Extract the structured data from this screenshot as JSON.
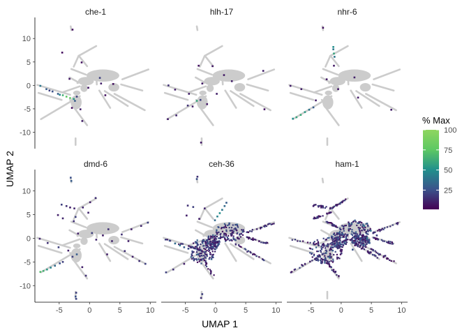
{
  "chart_data": {
    "type": "scatter",
    "facets": [
      "che-1",
      "hlh-17",
      "nhr-6",
      "dmd-6",
      "ceh-36",
      "ham-1"
    ],
    "xlabel": "UMAP 1",
    "ylabel": "UMAP 2",
    "xlim": [
      -9,
      11
    ],
    "ylim": [
      -13.5,
      14.5
    ],
    "xticks": [
      -5,
      0,
      5,
      10
    ],
    "yticks": [
      -10,
      -5,
      0,
      5,
      10
    ],
    "xtick_labels": [
      "-5",
      "0",
      "5",
      "10"
    ],
    "ytick_labels": [
      "-10",
      "-5",
      "0",
      "5",
      "10"
    ],
    "background_color": "#cccccc",
    "legend": {
      "title": "% Max",
      "position": "right",
      "breaks": [
        25,
        50,
        75,
        100
      ],
      "break_labels": [
        "25",
        "50",
        "75",
        "100"
      ],
      "range": [
        1,
        100
      ],
      "colors": [
        "#440154",
        "#3b528b",
        "#21908c",
        "#5dc863",
        "#8fd65f"
      ]
    },
    "background_segments": [
      [
        [
          -8,
          -7.2
        ],
        [
          -1.6,
          -2.3
        ]
      ],
      [
        [
          -8.6,
          0.1
        ],
        [
          -3.2,
          -2
        ]
      ],
      [
        [
          -8.4,
          -1.6
        ],
        [
          -4.6,
          -3.1
        ]
      ],
      [
        [
          -3.2,
          -3.1
        ],
        [
          -2.4,
          -4.4
        ]
      ],
      [
        [
          -2.8,
          -4.3
        ],
        [
          -0.4,
          -8.5
        ]
      ],
      [
        [
          -4.5,
          -1.5
        ],
        [
          -1.6,
          -0.2
        ]
      ],
      [
        [
          -3.3,
          1.7
        ],
        [
          -1.9,
          0.7
        ]
      ],
      [
        [
          -2,
          0.5
        ],
        [
          0.9,
          1.8
        ]
      ],
      [
        [
          -3,
          3.5
        ],
        [
          -0.6,
          2.3
        ]
      ],
      [
        [
          -1.7,
          6.2
        ],
        [
          -0.4,
          4.1
        ]
      ],
      [
        [
          -2.6,
          4
        ],
        [
          -1.8,
          6.3
        ]
      ],
      [
        [
          -1.8,
          6.3
        ],
        [
          1.1,
          8.4
        ]
      ],
      [
        [
          -3.1,
          12.6
        ],
        [
          -3,
          11.8
        ]
      ],
      [
        [
          -2.3,
          -11.3
        ],
        [
          -2.3,
          -12.7
        ]
      ],
      [
        [
          5.4,
          1.3
        ],
        [
          9.7,
          3.4
        ]
      ],
      [
        [
          5.2,
          0.2
        ],
        [
          8.7,
          -1.1
        ]
      ],
      [
        [
          4.1,
          -1.8
        ],
        [
          9.1,
          -5.3
        ]
      ],
      [
        [
          2.5,
          -1.2
        ],
        [
          6.3,
          -4.4
        ]
      ],
      [
        [
          1.6,
          -1.1
        ],
        [
          3.4,
          -4.8
        ]
      ],
      [
        [
          1.1,
          2.1
        ],
        [
          1.2,
          0.2
        ]
      ]
    ],
    "background_blobs": [
      [
        2.2,
        2.1,
        2.7,
        1.3
      ],
      [
        -0.6,
        0.9,
        1.3,
        0.9
      ],
      [
        -2.1,
        -1.6,
        0.6,
        0.5
      ],
      [
        -2.2,
        -3.6,
        0.9,
        1.5
      ],
      [
        -0.9,
        -0.6,
        0.6,
        0.8
      ],
      [
        4,
        -0.4,
        0.9,
        0.9
      ]
    ],
    "expression_points": [
      [
        [
          -8.1,
          -0.1,
          40
        ],
        [
          -7.1,
          -0.8,
          30
        ],
        [
          -6.1,
          -1.3,
          25
        ],
        [
          -5.2,
          -1.8,
          30
        ],
        [
          -4.4,
          -2.1,
          65
        ],
        [
          -3.8,
          -2.4,
          75
        ],
        [
          -3.2,
          -2.7,
          78
        ],
        [
          -2.6,
          -2.9,
          55
        ],
        [
          -2.4,
          -3.3,
          30
        ],
        [
          -2.1,
          -2.4,
          20
        ],
        [
          -6.6,
          -1.1,
          20
        ],
        [
          -4.9,
          -2,
          45
        ],
        [
          -1.2,
          -7.6,
          10
        ],
        [
          -4.5,
          7,
          5
        ],
        [
          -2.8,
          11.9,
          5
        ],
        [
          -1.3,
          4.9,
          6
        ],
        [
          -3.3,
          1.4,
          8
        ],
        [
          1.7,
          1.6,
          20
        ],
        [
          1.9,
          0.4,
          10
        ],
        [
          -0.2,
          -0.5,
          8
        ],
        [
          -1.5,
          -5.1,
          10
        ],
        [
          2.6,
          -2.1,
          6
        ],
        [
          -2.9,
          -4.8,
          5
        ],
        [
          3.9,
          0.3,
          6
        ]
      ],
      [
        [
          -7.9,
          -7.2,
          10
        ],
        [
          -6.5,
          -6.4,
          12
        ],
        [
          -4.6,
          -4.3,
          15
        ],
        [
          -3.8,
          -4.5,
          10
        ],
        [
          -3.1,
          -3.3,
          60
        ],
        [
          -2.5,
          -3.1,
          20
        ],
        [
          -4.4,
          -1.8,
          10
        ],
        [
          -7.8,
          0,
          15
        ],
        [
          -6.7,
          -0.9,
          10
        ],
        [
          -2.2,
          0.4,
          8
        ],
        [
          -2.8,
          4.2,
          6
        ],
        [
          -0.5,
          4.1,
          8
        ],
        [
          -1.4,
          -4,
          8
        ],
        [
          0.2,
          -1.8,
          10
        ],
        [
          1.4,
          2.2,
          8
        ],
        [
          2.7,
          0.9,
          10
        ],
        [
          7.9,
          3.1,
          10
        ],
        [
          8.1,
          -5.1,
          6
        ],
        [
          -2.4,
          -12.2,
          8
        ]
      ],
      [
        [
          -1.3,
          7.7,
          40
        ],
        [
          -1.3,
          8.2,
          50
        ],
        [
          -1.2,
          6.8,
          60
        ],
        [
          -1.1,
          6.1,
          40
        ],
        [
          -8,
          -7.1,
          50
        ],
        [
          -7.4,
          -6.8,
          60
        ],
        [
          -6.7,
          -6.3,
          62
        ],
        [
          -6,
          -5.7,
          55
        ],
        [
          -5.3,
          -5.2,
          40
        ],
        [
          -4.6,
          -4.7,
          30
        ],
        [
          -8.4,
          -0.1,
          10
        ],
        [
          -6.6,
          -0.8,
          10
        ],
        [
          -2.4,
          1.3,
          8
        ],
        [
          2.2,
          1.7,
          10
        ],
        [
          -0.5,
          -0.8,
          8
        ],
        [
          -3,
          12.3,
          6
        ],
        [
          2.8,
          -2.6,
          8
        ],
        [
          8.3,
          -5.2,
          10
        ],
        [
          -4.2,
          -3.2,
          8
        ],
        [
          -1.2,
          4.2,
          8
        ]
      ],
      [
        [
          -3.1,
          12.8,
          25
        ],
        [
          -3,
          12.1,
          30
        ],
        [
          -2.2,
          -11.5,
          20
        ],
        [
          -2.3,
          -12.3,
          25
        ],
        [
          -2.2,
          -12.8,
          22
        ],
        [
          -8.1,
          -7.1,
          70
        ],
        [
          -7.6,
          -6.9,
          65
        ],
        [
          -7,
          -6.6,
          55
        ],
        [
          -6.4,
          -6.2,
          45
        ],
        [
          -5.7,
          -5.8,
          35
        ],
        [
          -4.9,
          -5.3,
          25
        ],
        [
          -4.4,
          -5,
          20
        ],
        [
          -4.6,
          7.1,
          20
        ],
        [
          -3.8,
          6.8,
          15
        ],
        [
          -3.2,
          6.5,
          10
        ],
        [
          -2.5,
          6.3,
          12
        ],
        [
          -2.6,
          3.6,
          15
        ],
        [
          -2.3,
          4.5,
          20
        ],
        [
          -1.1,
          6.5,
          12
        ],
        [
          0.1,
          7.6,
          10
        ],
        [
          1,
          8.5,
          15
        ],
        [
          -4.4,
          4.2,
          12
        ],
        [
          -5.2,
          4.9,
          10
        ],
        [
          -1.9,
          1,
          10
        ],
        [
          -8.2,
          -0.1,
          12
        ],
        [
          -6.9,
          -1,
          15
        ],
        [
          -5.1,
          -1.9,
          20
        ],
        [
          -3.5,
          -2.6,
          10
        ],
        [
          -1.2,
          -6.1,
          10
        ],
        [
          -0.6,
          -7.9,
          15
        ],
        [
          -2.8,
          -3.9,
          20
        ],
        [
          -2.1,
          -3.4,
          30
        ],
        [
          0.4,
          1.1,
          20
        ],
        [
          1.1,
          -0.3,
          12
        ],
        [
          2.2,
          0.6,
          10
        ],
        [
          3.1,
          1.9,
          15
        ],
        [
          3.7,
          -0.6,
          12
        ],
        [
          5.3,
          0.8,
          15
        ],
        [
          6.9,
          1.9,
          10
        ],
        [
          8.5,
          2.6,
          12
        ],
        [
          9.6,
          3.3,
          20
        ],
        [
          5.8,
          -2.7,
          15
        ],
        [
          7.1,
          -3.9,
          10
        ],
        [
          8.2,
          -4.8,
          15
        ],
        [
          9.2,
          -5.4,
          20
        ],
        [
          6.4,
          -0.6,
          10
        ],
        [
          2.9,
          -3.4,
          10
        ],
        [
          -0.2,
          5.4,
          12
        ]
      ],
      [
        [
          -3.1,
          12.5,
          25
        ],
        [
          -3,
          13,
          15
        ],
        [
          -2.2,
          -11.8,
          20
        ],
        [
          -2.4,
          -12.6,
          15
        ],
        [
          -0.1,
          3.8,
          35
        ],
        [
          0.3,
          4.6,
          45
        ],
        [
          0.7,
          5.3,
          50
        ],
        [
          1.1,
          6,
          40
        ],
        [
          1.5,
          6.8,
          35
        ],
        [
          1.8,
          7.5,
          30
        ],
        [
          -7.6,
          -0.5,
          25
        ],
        [
          -6.7,
          -1.1,
          35
        ],
        [
          -5.9,
          -1.5,
          40
        ],
        [
          -5.2,
          -1.9,
          30
        ],
        [
          -4.5,
          -2.2,
          25
        ],
        [
          -4.6,
          6.9,
          15
        ],
        [
          -3.7,
          6.6,
          20
        ],
        [
          -2.7,
          4.1,
          10
        ],
        [
          -1.8,
          6.3,
          12
        ],
        [
          -4.8,
          4.8,
          10
        ],
        [
          -8.2,
          -7.2,
          20
        ],
        [
          -7,
          -6.6,
          15
        ],
        [
          -5.2,
          -5.4,
          10
        ],
        [
          -2.6,
          -3.8,
          15
        ]
      ],
      [
        [
          -2.6,
          -4.4,
          25
        ],
        [
          -1.9,
          -4.1,
          35
        ],
        [
          -2.5,
          -3.1,
          30
        ],
        [
          -3.5,
          -3.9,
          25
        ],
        [
          -4.1,
          -4.6,
          20
        ],
        [
          -1.4,
          -2.6,
          30
        ],
        [
          4.3,
          3.1,
          30
        ],
        [
          3.8,
          2.6,
          40
        ],
        [
          2.9,
          3.2,
          25
        ],
        [
          4.9,
          1.6,
          35
        ],
        [
          1.3,
          3,
          25
        ],
        [
          2.1,
          1.1,
          20
        ],
        [
          3.2,
          -0.3,
          30
        ],
        [
          4.3,
          0.1,
          40
        ],
        [
          4.7,
          -1,
          28
        ],
        [
          -3.3,
          -4.9,
          20
        ],
        [
          -4.6,
          6.8,
          10
        ],
        [
          -3.3,
          6.5,
          10
        ],
        [
          -4.4,
          4.3,
          8
        ],
        [
          -8.3,
          -7.2,
          12
        ],
        [
          0.3,
          -0.7,
          15
        ],
        [
          1.9,
          -2.4,
          25
        ],
        [
          5.9,
          0.6,
          20
        ],
        [
          7.3,
          -3.7,
          15
        ]
      ]
    ],
    "cluster_regions": [
      [],
      [],
      [],
      [],
      [
        [
          -2.2,
          -2.8,
          2.2,
          2.6
        ],
        [
          2.3,
          1.3,
          2.4,
          2
        ],
        [
          -0.5,
          -0.9,
          1.2,
          1.6
        ]
      ],
      [
        [
          -2.5,
          -2.6,
          2.8,
          2.8
        ],
        [
          2.3,
          1.6,
          2.7,
          2.2
        ],
        [
          -0.4,
          -0.4,
          1.4,
          1.7
        ],
        [
          3.2,
          -0.5,
          1.5,
          1.4
        ]
      ]
    ],
    "trajectory_bands": [
      [],
      [],
      [],
      [],
      [
        [
          [
            -8.5,
            -0.1
          ],
          [
            -2.2,
            -2.6
          ]
        ],
        [
          [
            -2.6,
            -3
          ],
          [
            -0.3,
            -8.2
          ]
        ],
        [
          [
            3.4,
            -1.3
          ],
          [
            8.5,
            -5
          ]
        ],
        [
          [
            5.2,
            1.2
          ],
          [
            9.5,
            3.2
          ]
        ],
        [
          [
            5.1,
            0.2
          ],
          [
            8.5,
            -1.1
          ]
        ]
      ],
      [
        [
          [
            -8.4,
            -7.2
          ],
          [
            -1.6,
            -2.3
          ]
        ],
        [
          [
            -8.5,
            -0.2
          ],
          [
            -0.1,
            -2.1
          ]
        ],
        [
          [
            -2.8,
            -4.2
          ],
          [
            -0.3,
            -8.4
          ]
        ],
        [
          [
            3.8,
            -1.5
          ],
          [
            9.1,
            -5.3
          ]
        ],
        [
          [
            5.3,
            1.1
          ],
          [
            9.7,
            3.3
          ]
        ],
        [
          [
            5.1,
            0.1
          ],
          [
            8.7,
            -1.1
          ]
        ],
        [
          [
            2.4,
            -1.2
          ],
          [
            6.3,
            -4.3
          ]
        ],
        [
          [
            -4.5,
            7
          ],
          [
            -1.6,
            6.3
          ]
        ],
        [
          [
            -4.6,
            4.1
          ],
          [
            -1.7,
            5.5
          ]
        ],
        [
          [
            -1.7,
            6.2
          ],
          [
            0.9,
            8.3
          ]
        ],
        [
          [
            -2.6,
            3.7
          ],
          [
            -0.6,
            2.3
          ]
        ]
      ]
    ]
  }
}
